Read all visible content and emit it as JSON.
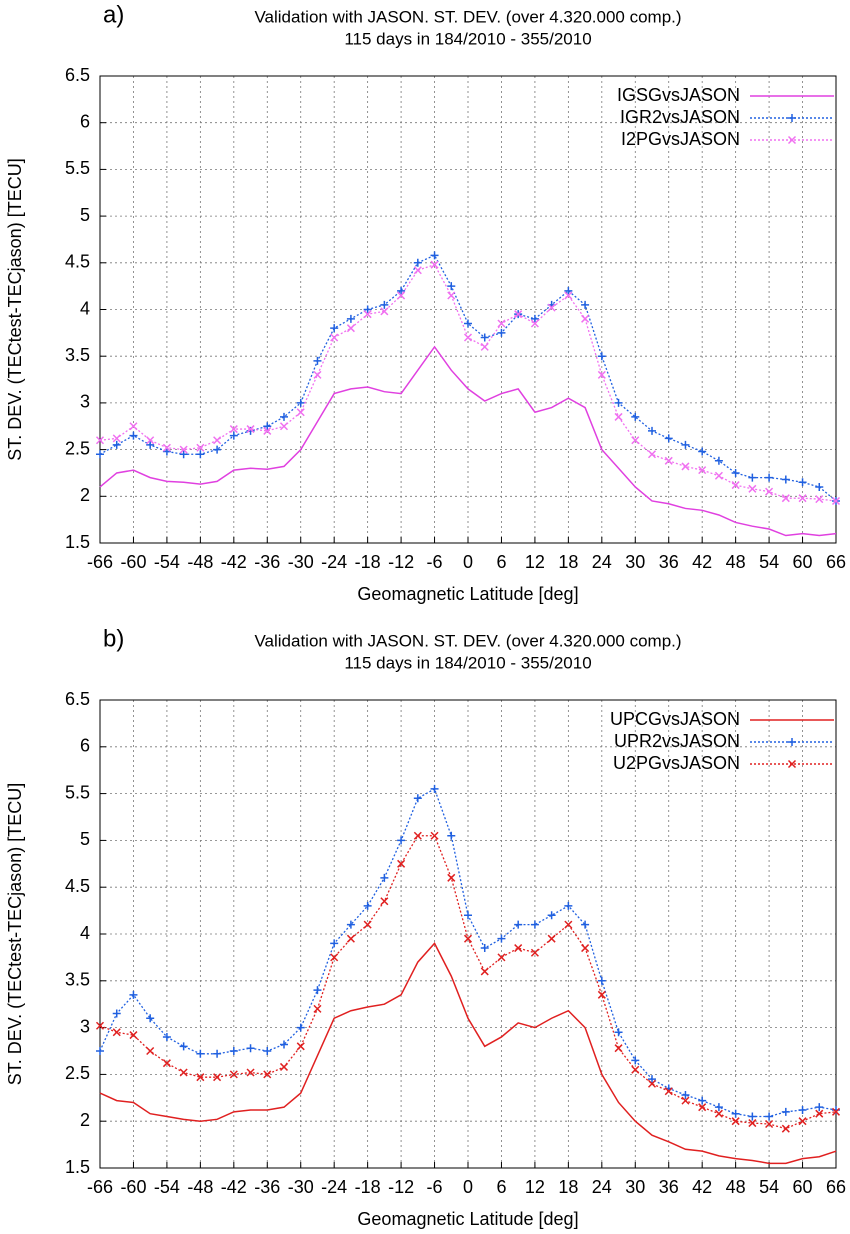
{
  "chart_data": [
    {
      "type": "line",
      "panel_label": "a)",
      "title": "Validation with JASON. ST. DEV. (over 4.320.000 comp.)",
      "subtitle": "115 days in 184/2010 - 355/2010",
      "xlabel": "Geomagnetic Latitude [deg]",
      "ylabel": "ST. DEV. (TECtest-TECjason) [TECU]",
      "xlim": [
        -66,
        66
      ],
      "ylim": [
        1.5,
        6.5
      ],
      "xticks": [
        -66,
        -60,
        -54,
        -48,
        -42,
        -36,
        -30,
        -24,
        -18,
        -12,
        -6,
        0,
        6,
        12,
        18,
        24,
        30,
        36,
        42,
        48,
        54,
        60,
        66
      ],
      "yticks": [
        1.5,
        2,
        2.5,
        3,
        3.5,
        4,
        4.5,
        5,
        5.5,
        6,
        6.5
      ],
      "grid": true,
      "legend": "top-right",
      "x": [
        -66,
        -63,
        -60,
        -57,
        -54,
        -51,
        -48,
        -45,
        -42,
        -39,
        -36,
        -33,
        -30,
        -27,
        -24,
        -21,
        -18,
        -15,
        -12,
        -9,
        -6,
        -3,
        0,
        3,
        6,
        9,
        12,
        15,
        18,
        21,
        24,
        27,
        30,
        33,
        36,
        39,
        42,
        45,
        48,
        51,
        54,
        57,
        60,
        63,
        66
      ],
      "series": [
        {
          "name": "IGSGvsJASON",
          "color": "#e040e0",
          "style": "solid",
          "marker": "none",
          "values": [
            2.1,
            2.25,
            2.28,
            2.2,
            2.16,
            2.15,
            2.13,
            2.16,
            2.28,
            2.3,
            2.29,
            2.32,
            2.5,
            2.8,
            3.1,
            3.15,
            3.17,
            3.12,
            3.1,
            3.35,
            3.6,
            3.35,
            3.15,
            3.02,
            3.1,
            3.15,
            2.9,
            2.95,
            3.05,
            2.95,
            2.5,
            2.3,
            2.1,
            1.95,
            1.92,
            1.87,
            1.85,
            1.8,
            1.72,
            1.68,
            1.65,
            1.58,
            1.6,
            1.58,
            1.6
          ]
        },
        {
          "name": "IGR2vsJASON",
          "color": "#2060e0",
          "style": "dotted",
          "marker": "plus",
          "values": [
            2.45,
            2.55,
            2.65,
            2.55,
            2.48,
            2.45,
            2.45,
            2.5,
            2.65,
            2.7,
            2.75,
            2.85,
            3.0,
            3.45,
            3.8,
            3.9,
            4.0,
            4.05,
            4.2,
            4.5,
            4.58,
            4.25,
            3.85,
            3.7,
            3.75,
            3.95,
            3.9,
            4.05,
            4.2,
            4.05,
            3.5,
            3.0,
            2.85,
            2.7,
            2.62,
            2.55,
            2.48,
            2.38,
            2.25,
            2.2,
            2.2,
            2.18,
            2.15,
            2.1,
            1.95
          ]
        },
        {
          "name": "I2PGvsJASON",
          "color": "#f070f0",
          "style": "dotted",
          "marker": "cross",
          "values": [
            2.6,
            2.62,
            2.75,
            2.6,
            2.52,
            2.5,
            2.52,
            2.6,
            2.72,
            2.72,
            2.7,
            2.75,
            2.9,
            3.3,
            3.7,
            3.8,
            3.95,
            3.98,
            4.15,
            4.42,
            4.48,
            4.15,
            3.7,
            3.6,
            3.85,
            3.95,
            3.85,
            4.02,
            4.15,
            3.9,
            3.3,
            2.85,
            2.6,
            2.45,
            2.38,
            2.32,
            2.28,
            2.22,
            2.12,
            2.08,
            2.05,
            1.98,
            1.98,
            1.97,
            1.95
          ]
        }
      ]
    },
    {
      "type": "line",
      "panel_label": "b)",
      "title": "Validation with JASON. ST. DEV. (over 4.320.000 comp.)",
      "subtitle": "115 days in 184/2010 - 355/2010",
      "xlabel": "Geomagnetic Latitude [deg]",
      "ylabel": "ST. DEV. (TECtest-TECjason) [TECU]",
      "xlim": [
        -66,
        66
      ],
      "ylim": [
        1.5,
        6.5
      ],
      "xticks": [
        -66,
        -60,
        -54,
        -48,
        -42,
        -36,
        -30,
        -24,
        -18,
        -12,
        -6,
        0,
        6,
        12,
        18,
        24,
        30,
        36,
        42,
        48,
        54,
        60,
        66
      ],
      "yticks": [
        1.5,
        2,
        2.5,
        3,
        3.5,
        4,
        4.5,
        5,
        5.5,
        6,
        6.5
      ],
      "grid": true,
      "legend": "top-right",
      "x": [
        -66,
        -63,
        -60,
        -57,
        -54,
        -51,
        -48,
        -45,
        -42,
        -39,
        -36,
        -33,
        -30,
        -27,
        -24,
        -21,
        -18,
        -15,
        -12,
        -9,
        -6,
        -3,
        0,
        3,
        6,
        9,
        12,
        15,
        18,
        21,
        24,
        27,
        30,
        33,
        36,
        39,
        42,
        45,
        48,
        51,
        54,
        57,
        60,
        63,
        66
      ],
      "series": [
        {
          "name": "UPCGvsJASON",
          "color": "#e02020",
          "style": "solid",
          "marker": "none",
          "values": [
            2.3,
            2.22,
            2.2,
            2.08,
            2.05,
            2.02,
            2.0,
            2.02,
            2.1,
            2.12,
            2.12,
            2.15,
            2.3,
            2.7,
            3.1,
            3.18,
            3.22,
            3.25,
            3.35,
            3.7,
            3.9,
            3.55,
            3.1,
            2.8,
            2.9,
            3.05,
            3.0,
            3.1,
            3.18,
            3.0,
            2.5,
            2.2,
            2.0,
            1.85,
            1.78,
            1.7,
            1.68,
            1.63,
            1.6,
            1.58,
            1.55,
            1.55,
            1.6,
            1.62,
            1.68
          ]
        },
        {
          "name": "UPR2vsJASON",
          "color": "#2060e0",
          "style": "dotted",
          "marker": "plus",
          "values": [
            2.75,
            3.15,
            3.35,
            3.1,
            2.9,
            2.8,
            2.72,
            2.72,
            2.75,
            2.78,
            2.75,
            2.82,
            3.0,
            3.4,
            3.9,
            4.1,
            4.3,
            4.6,
            5.0,
            5.45,
            5.55,
            5.05,
            4.2,
            3.85,
            3.95,
            4.1,
            4.1,
            4.2,
            4.3,
            4.1,
            3.5,
            2.95,
            2.65,
            2.45,
            2.35,
            2.28,
            2.22,
            2.15,
            2.08,
            2.05,
            2.05,
            2.1,
            2.12,
            2.15,
            2.12
          ]
        },
        {
          "name": "U2PGvsJASON",
          "color": "#e02020",
          "style": "dotted",
          "marker": "cross",
          "values": [
            3.02,
            2.95,
            2.92,
            2.75,
            2.62,
            2.52,
            2.47,
            2.47,
            2.5,
            2.52,
            2.5,
            2.58,
            2.8,
            3.2,
            3.75,
            3.95,
            4.1,
            4.35,
            4.75,
            5.05,
            5.05,
            4.6,
            3.95,
            3.6,
            3.75,
            3.85,
            3.8,
            3.95,
            4.1,
            3.85,
            3.35,
            2.78,
            2.55,
            2.4,
            2.32,
            2.22,
            2.15,
            2.08,
            2.0,
            1.98,
            1.97,
            1.92,
            2.0,
            2.08,
            2.1
          ]
        }
      ]
    }
  ]
}
